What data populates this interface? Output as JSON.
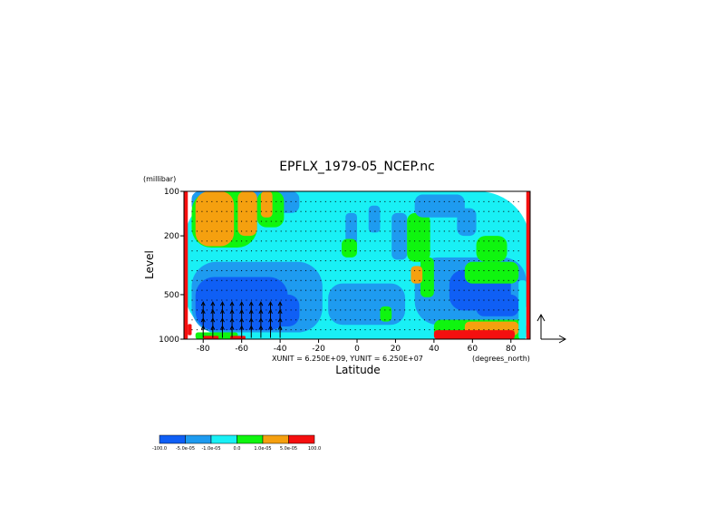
{
  "chart_data": {
    "type": "heatmap",
    "title": "EPFLX_1979-05_NCEP.nc",
    "xlabel": "Latitude",
    "xunit": "(degrees_north)",
    "ylabel": "Level",
    "yunit": "(millibar)",
    "vector_units": "XUNIT = 6.250E+09, YUNIT = 6.250E+07",
    "x_range": [
      -90,
      90
    ],
    "y_range": [
      1000,
      100
    ],
    "y_scale": "log",
    "x_ticks": [
      {
        "v": -80,
        "label": "-80"
      },
      {
        "v": -60,
        "label": "-60"
      },
      {
        "v": -40,
        "label": "-40"
      },
      {
        "v": -20,
        "label": "-20"
      },
      {
        "v": 0,
        "label": "0"
      },
      {
        "v": 20,
        "label": "20"
      },
      {
        "v": 40,
        "label": "40"
      },
      {
        "v": 60,
        "label": "60"
      },
      {
        "v": 80,
        "label": "80"
      }
    ],
    "y_ticks": [
      {
        "v": 100,
        "label": "100"
      },
      {
        "v": 200,
        "label": "200"
      },
      {
        "v": 500,
        "label": "500"
      },
      {
        "v": 1000,
        "label": "1000"
      }
    ],
    "colorbar": {
      "colors": [
        "#0f5ff5",
        "#1e9bf0",
        "#19f0f5",
        "#0ff50f",
        "#f5a00f",
        "#f50f0f"
      ],
      "labels": [
        "-100.0",
        "-5.0e-05",
        "-1.0e-05",
        "0.0",
        "1.0e-05",
        "5.0e-05",
        "100.0"
      ]
    },
    "field_regions": [
      {
        "c": 2,
        "lat": [
          -90,
          90
        ],
        "p": [
          100,
          1000
        ]
      },
      {
        "c": 1,
        "lat": [
          -86,
          -18
        ],
        "p": [
          300,
          900
        ]
      },
      {
        "c": 0,
        "lat": [
          -84,
          -36
        ],
        "p": [
          380,
          870
        ]
      },
      {
        "c": 0,
        "lat": [
          -55,
          -30
        ],
        "p": [
          500,
          820
        ]
      },
      {
        "c": 1,
        "lat": [
          -15,
          25
        ],
        "p": [
          420,
          800
        ]
      },
      {
        "c": 1,
        "lat": [
          30,
          88
        ],
        "p": [
          280,
          800
        ]
      },
      {
        "c": 0,
        "lat": [
          48,
          80
        ],
        "p": [
          340,
          640
        ]
      },
      {
        "c": 0,
        "lat": [
          62,
          84
        ],
        "p": [
          500,
          700
        ]
      },
      {
        "c": 1,
        "lat": [
          -86,
          -30
        ],
        "p": [
          100,
          140
        ]
      },
      {
        "c": 3,
        "lat": [
          -86,
          -52
        ],
        "p": [
          100,
          240
        ]
      },
      {
        "c": 3,
        "lat": [
          -52,
          -38
        ],
        "p": [
          100,
          175
        ]
      },
      {
        "c": 4,
        "lat": [
          -84,
          -64
        ],
        "p": [
          100,
          235
        ]
      },
      {
        "c": 4,
        "lat": [
          -62,
          -52
        ],
        "p": [
          100,
          200
        ]
      },
      {
        "c": 4,
        "lat": [
          -50,
          -44
        ],
        "p": [
          100,
          150
        ]
      },
      {
        "c": 1,
        "lat": [
          -6,
          0
        ],
        "p": [
          140,
          260
        ]
      },
      {
        "c": 1,
        "lat": [
          6,
          12
        ],
        "p": [
          125,
          190
        ]
      },
      {
        "c": 1,
        "lat": [
          18,
          26
        ],
        "p": [
          140,
          290
        ]
      },
      {
        "c": 3,
        "lat": [
          26,
          38
        ],
        "p": [
          140,
          300
        ]
      },
      {
        "c": 3,
        "lat": [
          33,
          40
        ],
        "p": [
          280,
          520
        ]
      },
      {
        "c": 4,
        "lat": [
          28,
          34
        ],
        "p": [
          320,
          420
        ]
      },
      {
        "c": 1,
        "lat": [
          30,
          56
        ],
        "p": [
          105,
          150
        ]
      },
      {
        "c": 1,
        "lat": [
          52,
          62
        ],
        "p": [
          130,
          200
        ]
      },
      {
        "c": 3,
        "lat": [
          -8,
          0
        ],
        "p": [
          210,
          280
        ]
      },
      {
        "c": 3,
        "lat": [
          62,
          78
        ],
        "p": [
          200,
          300
        ]
      },
      {
        "c": 3,
        "lat": [
          56,
          84
        ],
        "p": [
          300,
          420
        ]
      },
      {
        "c": 3,
        "lat": [
          12,
          18
        ],
        "p": [
          600,
          760
        ]
      },
      {
        "c": 3,
        "lat": [
          -84,
          -62
        ],
        "p": [
          900,
          1000
        ]
      },
      {
        "c": 3,
        "lat": [
          40,
          88
        ],
        "p": [
          740,
          1000
        ]
      },
      {
        "c": 4,
        "lat": [
          56,
          84
        ],
        "p": [
          760,
          940
        ]
      },
      {
        "c": 5,
        "lat": [
          40,
          82
        ],
        "p": [
          870,
          1000
        ]
      },
      {
        "c": 5,
        "lat": [
          -80,
          -72
        ],
        "p": [
          950,
          1000
        ]
      },
      {
        "c": 5,
        "lat": [
          -66,
          -58
        ],
        "p": [
          950,
          1000
        ]
      },
      {
        "c": 2,
        "lat": [
          84,
          88
        ],
        "p": [
          400,
          1000
        ]
      },
      {
        "c": 5,
        "lat": [
          -90,
          -88
        ],
        "p": [
          100,
          1000
        ]
      },
      {
        "c": 5,
        "lat": [
          88,
          90
        ],
        "p": [
          100,
          1000
        ]
      },
      {
        "c": 5,
        "lat": [
          -88,
          -86
        ],
        "p": [
          790,
          940
        ]
      }
    ],
    "arrow_columns_lat": [
      -80,
      -75,
      -70,
      -65,
      -60,
      -55,
      -50,
      -45,
      -40
    ]
  }
}
